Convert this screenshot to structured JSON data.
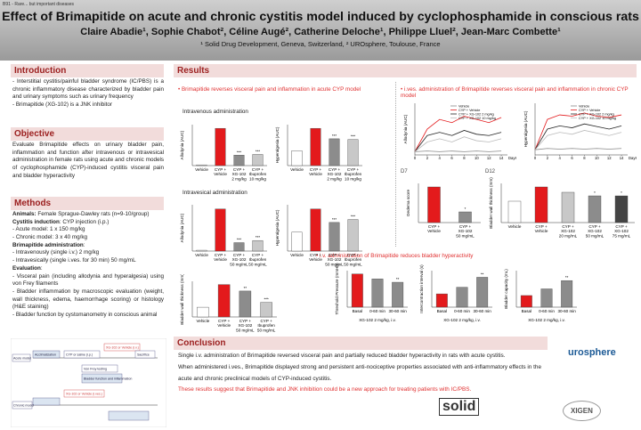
{
  "header": {
    "session": "B91 - Rare... but important diseases",
    "title": "Effect of Brimapitide on acute and chronic cystitis model induced by cyclophosphamide in conscious rats",
    "authors": "Claire Abadie¹, Sophie Chabot², Céline Augé², Catherine Deloche¹, Philippe Lluel², Jean-Marc Combette¹",
    "affiliations": "¹ Solid Drug Development, Geneva, Switzerland, ² UROsphere, Toulouse, France"
  },
  "introduction": {
    "heading": "Introduction",
    "items": [
      "- Interstitial cystitis/painful bladder syndrome (IC/PBS) is a chronic inflammatory disease characterized by bladder pain and urinary symptoms such as urinary frequency",
      "- Brimapitide (XG-102) is a JNK inhibitor"
    ]
  },
  "objective": {
    "heading": "Objective",
    "text": "Evaluate Brimapitide effects on urinary bladder pain, inflammation and function after intravenous or intravesical administration in female rats using acute and chronic models of cyclophosphamide (CYP)-induced cystitis visceral pain and bladder hyperactivity"
  },
  "methods": {
    "heading": "Methods",
    "items": [
      {
        "bold": "Animals:",
        "text": " Female Sprague-Dawley rats (n=9-10/group)"
      },
      {
        "bold": "Cystitis induction",
        "text": ": CYP injection (i.p.)"
      },
      {
        "text": "- Acute model: 1 x 150 mg/kg"
      },
      {
        "text": "- Chronic model: 3 x 40 mg/kg"
      },
      {
        "bold": "Brimapitide administration",
        "text": ":"
      },
      {
        "text": "- Intravenously (single i.v.) 2 mg/kg"
      },
      {
        "text": "- Intravesically (single i.ves. for 30 min) 50 mg/mL"
      },
      {
        "bold": "Evaluation",
        "text": ":"
      },
      {
        "text": "- Visceral pain (including allodynia and hyperalgesia) using von Frey filaments"
      },
      {
        "text": "- Bladder inflammation by macroscopic evaluation (weight, wall thickness, edema, haemorrhage scoring) or histology (H&E staining)"
      },
      {
        "text": "- Bladder function by cystomanometry in conscious animal"
      }
    ]
  },
  "diagram": {
    "labels": [
      "Acclimatization",
      "CYP or saline (i.p.)",
      "XG-102 or Vehicle (i.v.)",
      "Von Frey testing",
      "Bladder function and inflammation",
      "Acute model",
      "Chronic model",
      "XG-102 or Vehicle (i.ves.)",
      "Sacrifice"
    ]
  },
  "results": {
    "heading": "Results",
    "acute_heading": "Brimapitide reverses visceral pain and inflammation in acute CYP model",
    "iv_heading": "Intravenous administration",
    "ives_heading": "Intravesical administration",
    "chronic_heading": "i.ves. administration of Brimapitide reverses visceral pain and inflammation in chronic CYP model",
    "d7": "D7",
    "d12": "D12",
    "hyper_heading": "i.v. administration of Brimapitide reduces bladder hyperactivity"
  },
  "chart_data": [
    {
      "type": "bar",
      "ylabel": "Allodynia (AUC)",
      "ylim": [
        0,
        110
      ],
      "categories": [
        [
          "Vehicle"
        ],
        [
          "CYP +",
          "Vehicle"
        ],
        [
          "CYP +",
          "XG-102",
          "2 mg/kg"
        ],
        [
          "CYP +",
          "Ibuprofen",
          "10 mg/kg"
        ]
      ],
      "values": [
        2,
        100,
        28,
        30
      ],
      "colors": [
        "#ffffff",
        "#e31a1c",
        "#8c8c8c",
        "#c8c8c8"
      ],
      "annotations": [
        null,
        null,
        "***",
        "***"
      ]
    },
    {
      "type": "bar",
      "ylabel": "Hyperalgesia (AUC)",
      "ylim": [
        0,
        110
      ],
      "categories": [
        [
          "Vehicle"
        ],
        [
          "CYP +",
          "Vehicle"
        ],
        [
          "CYP +",
          "XG-102",
          "2 mg/kg"
        ],
        [
          "CYP +",
          "Ibuprofen",
          "10 mg/kg"
        ]
      ],
      "values": [
        40,
        100,
        72,
        70
      ],
      "colors": [
        "#ffffff",
        "#e31a1c",
        "#8c8c8c",
        "#c8c8c8"
      ],
      "annotations": [
        null,
        null,
        "***",
        "***"
      ]
    },
    {
      "type": "bar",
      "ylabel": "Allodynia (AUC)",
      "ylim": [
        0,
        110
      ],
      "categories": [
        [
          "Vehicle"
        ],
        [
          "CYP +",
          "Vehicle"
        ],
        [
          "CYP +",
          "XG-102",
          "50 mg/mL"
        ],
        [
          "CYP +",
          "Ibuprofen",
          "50 mg/mL"
        ]
      ],
      "values": [
        2,
        100,
        20,
        25
      ],
      "colors": [
        "#ffffff",
        "#e31a1c",
        "#8c8c8c",
        "#c8c8c8"
      ],
      "annotations": [
        null,
        null,
        "***",
        "***"
      ]
    },
    {
      "type": "bar",
      "ylabel": "Hyperalgesia (AUC)",
      "ylim": [
        0,
        110
      ],
      "categories": [
        [
          "Vehicle"
        ],
        [
          "CYP +",
          "Vehicle"
        ],
        [
          "CYP +",
          "XG-102",
          "50 mg/mL"
        ],
        [
          "CYP +",
          "Ibuprofen",
          "50 mg/mL"
        ]
      ],
      "values": [
        45,
        100,
        68,
        75
      ],
      "colors": [
        "#ffffff",
        "#e31a1c",
        "#8c8c8c",
        "#c8c8c8"
      ],
      "annotations": [
        null,
        null,
        "***",
        "***"
      ]
    },
    {
      "type": "bar",
      "ylabel": "Bladder wall thickness (mm)",
      "ylim": [
        0,
        110
      ],
      "categories": [
        [
          "Vehicle"
        ],
        [
          "CYP +",
          "Vehicle"
        ],
        [
          "CYP +",
          "XG-102",
          "50 mg/mL"
        ],
        [
          "CYP +",
          "Ibuprofen",
          "50 mg/mL"
        ]
      ],
      "values": [
        30,
        100,
        80,
        45
      ],
      "colors": [
        "#ffffff",
        "#e31a1c",
        "#8c8c8c",
        "#c8c8c8"
      ],
      "annotations": [
        null,
        null,
        "**",
        "***"
      ]
    },
    {
      "type": "line",
      "ylabel": "Allodynia (AUC)",
      "xlabel": "Days",
      "xlim": [
        0,
        15
      ],
      "ylim": [
        0,
        80
      ],
      "x": [
        0,
        2,
        4,
        6,
        8,
        10,
        12,
        14
      ],
      "xticks": [
        0,
        2,
        4,
        6,
        8,
        10,
        12,
        14
      ],
      "series": [
        {
          "name": "Vehicle",
          "color": "#888888",
          "values": [
            5,
            6,
            5,
            6,
            5,
            6,
            5,
            6
          ]
        },
        {
          "name": "CYP + Vehicle",
          "color": "#e31a1c",
          "values": [
            5,
            40,
            55,
            50,
            60,
            55,
            50,
            58
          ]
        },
        {
          "name": "CYP + XG-102 2 mg/kg",
          "color": "#222222",
          "values": [
            5,
            30,
            35,
            30,
            38,
            32,
            30,
            35
          ]
        },
        {
          "name": "CYP + XG-102 10 mg/kg",
          "color": "#bbbbbb",
          "values": [
            5,
            20,
            25,
            20,
            28,
            22,
            20,
            25
          ]
        }
      ]
    },
    {
      "type": "line",
      "ylabel": "Hyperalgesia (AUC)",
      "xlabel": "Days",
      "xlim": [
        0,
        15
      ],
      "ylim": [
        0,
        80
      ],
      "x": [
        0,
        2,
        4,
        6,
        8,
        10,
        12,
        14
      ],
      "xticks": [
        0,
        2,
        4,
        6,
        8,
        10,
        12,
        14
      ],
      "series": [
        {
          "name": "Vehicle",
          "color": "#888888",
          "values": [
            8,
            10,
            9,
            10,
            9,
            10,
            9,
            10
          ]
        },
        {
          "name": "CYP + Vehicle",
          "color": "#e31a1c",
          "values": [
            8,
            55,
            62,
            60,
            65,
            60,
            58,
            62
          ]
        },
        {
          "name": "CYP + XG-102 2 mg/kg",
          "color": "#222222",
          "values": [
            8,
            40,
            45,
            42,
            48,
            44,
            40,
            45
          ]
        },
        {
          "name": "CYP + XG-102 10 mg/kg",
          "color": "#bbbbbb",
          "values": [
            8,
            30,
            35,
            32,
            38,
            34,
            30,
            35
          ]
        }
      ]
    },
    {
      "type": "bar",
      "ylabel": "Oedema score",
      "ylim": [
        0,
        110
      ],
      "categories": [
        [
          "CYP +",
          "Vehicle"
        ],
        [
          "CYP +",
          "XG-102",
          "50 mg/mL"
        ]
      ],
      "values": [
        100,
        30
      ],
      "colors": [
        "#e31a1c",
        "#8c8c8c"
      ],
      "annotations": [
        null,
        "*"
      ]
    },
    {
      "type": "bar",
      "ylabel": "Bladder wall thickness (mm)",
      "ylim": [
        0,
        110
      ],
      "categories": [
        [
          "Vehicle"
        ],
        [
          "CYP +",
          "Vehicle"
        ],
        [
          "CYP +",
          "XG-102",
          "20 mg/mL"
        ],
        [
          "CYP +",
          "XG-102",
          "50 mg/mL"
        ],
        [
          "CYP +",
          "XG-102",
          "75 mg/mL"
        ]
      ],
      "values": [
        60,
        100,
        85,
        75,
        75
      ],
      "colors": [
        "#ffffff",
        "#e31a1c",
        "#c8c8c8",
        "#8c8c8c",
        "#444444"
      ],
      "annotations": [
        null,
        null,
        null,
        "*",
        "*"
      ]
    },
    {
      "type": "bar",
      "ylabel": "Threshold Pressure (mmHg)",
      "xlabel": "XG-102 2 mg/kg, i.v.",
      "ylim": [
        0,
        110
      ],
      "categories": [
        [
          "Basal"
        ],
        [
          "0-60 min"
        ],
        [
          "30-60 min"
        ]
      ],
      "values": [
        100,
        85,
        75
      ],
      "colors": [
        "#e31a1c",
        "#8c8c8c",
        "#8c8c8c"
      ],
      "annotations": [
        null,
        null,
        "**"
      ]
    },
    {
      "type": "bar",
      "ylabel": "Intercontraction interval (s)",
      "xlabel": "XG-102 2 mg/kg, i.v.",
      "ylim": [
        0,
        110
      ],
      "categories": [
        [
          "Basal"
        ],
        [
          "0-60 min"
        ],
        [
          "30-60 min"
        ]
      ],
      "values": [
        40,
        60,
        90
      ],
      "colors": [
        "#e31a1c",
        "#8c8c8c",
        "#8c8c8c"
      ],
      "annotations": [
        null,
        null,
        "**"
      ]
    },
    {
      "type": "bar",
      "ylabel": "Bladder capacity (mL)",
      "xlabel": "XG-102 2 mg/kg, i.v.",
      "ylim": [
        0,
        110
      ],
      "categories": [
        [
          "Basal"
        ],
        [
          "0-60 min"
        ],
        [
          "30-60 min"
        ]
      ],
      "values": [
        35,
        55,
        80
      ],
      "colors": [
        "#e31a1c",
        "#8c8c8c",
        "#8c8c8c"
      ],
      "annotations": [
        null,
        null,
        "**"
      ]
    }
  ],
  "conclusion": {
    "heading": "Conclusion",
    "paragraphs": [
      "Single i.v. administration of Brimapitide reversed visceral pain and partially reduced bladder hyperactivity in rats with acute cystitis.",
      "When administered i.ves., Brimapitide displayed strong and persistent anti-nociceptive properties associated with anti-inflammatory effects in the acute and chronic preclinical models of CYP-induced cystitis."
    ],
    "highlight": "These results suggest that Brimapitide and JNK inhibition could be a new approach for treating patients with IC/PBS."
  },
  "logos": {
    "urosphere": "urosphere",
    "solid": "solid",
    "xigen": "XIGEN"
  }
}
